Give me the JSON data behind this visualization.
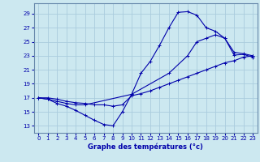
{
  "title": "Graphe des températures (°c)",
  "bg_color": "#cce8f0",
  "grid_color": "#aaccdd",
  "line_color": "#0000aa",
  "yticks": [
    13,
    15,
    17,
    19,
    21,
    23,
    25,
    27,
    29
  ],
  "xticks": [
    0,
    1,
    2,
    3,
    4,
    5,
    6,
    7,
    8,
    9,
    10,
    11,
    12,
    13,
    14,
    15,
    16,
    17,
    18,
    19,
    20,
    21,
    22,
    23
  ],
  "xlim": [
    -0.5,
    23.5
  ],
  "ylim": [
    12.0,
    30.5
  ],
  "series1_x": [
    0,
    1,
    2,
    3,
    4,
    5,
    6,
    7,
    8,
    9,
    10,
    11,
    12,
    13,
    14,
    15,
    16,
    17,
    18,
    19,
    20,
    21,
    22,
    23
  ],
  "series1_y": [
    17.0,
    16.8,
    16.2,
    15.8,
    15.2,
    14.5,
    13.8,
    13.2,
    13.0,
    15.0,
    17.5,
    20.5,
    22.2,
    24.5,
    27.0,
    29.2,
    29.3,
    28.8,
    27.0,
    26.5,
    25.5,
    23.1,
    23.2,
    22.8
  ],
  "series2_x": [
    0,
    1,
    2,
    3,
    4,
    5,
    6,
    7,
    8,
    9,
    10,
    11,
    12,
    13,
    14,
    15,
    16,
    17,
    18,
    19,
    20,
    21,
    22,
    23
  ],
  "series2_y": [
    17.0,
    17.0,
    16.8,
    16.5,
    16.3,
    16.2,
    16.0,
    16.0,
    15.8,
    16.0,
    17.3,
    17.6,
    18.0,
    18.5,
    19.0,
    19.5,
    20.0,
    20.5,
    21.0,
    21.5,
    22.0,
    22.3,
    22.8,
    23.0
  ],
  "series3_x": [
    0,
    1,
    2,
    3,
    4,
    5,
    10,
    14,
    16,
    17,
    18,
    19,
    20,
    21,
    22,
    23
  ],
  "series3_y": [
    17.0,
    16.8,
    16.5,
    16.2,
    16.0,
    16.0,
    17.5,
    20.5,
    23.0,
    25.0,
    25.5,
    26.0,
    25.5,
    23.5,
    23.3,
    23.0
  ]
}
